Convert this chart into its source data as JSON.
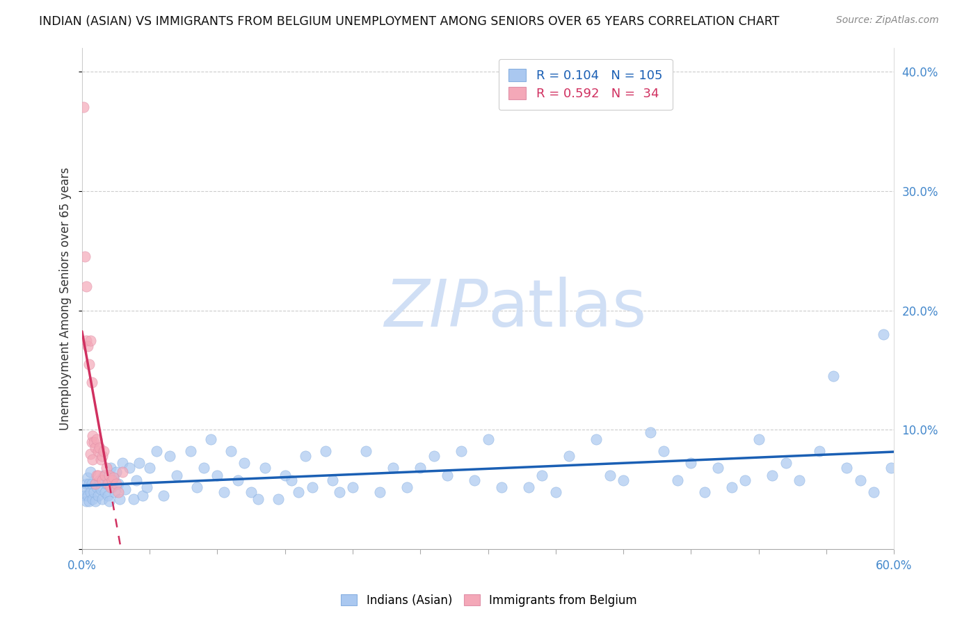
{
  "title": "INDIAN (ASIAN) VS IMMIGRANTS FROM BELGIUM UNEMPLOYMENT AMONG SENIORS OVER 65 YEARS CORRELATION CHART",
  "source": "Source: ZipAtlas.com",
  "ylabel": "Unemployment Among Seniors over 65 years",
  "xlim": [
    0.0,
    0.6
  ],
  "ylim": [
    0.0,
    0.42
  ],
  "yticks": [
    0.0,
    0.1,
    0.2,
    0.3,
    0.4
  ],
  "ytick_labels_right": [
    "",
    "10.0%",
    "20.0%",
    "30.0%",
    "40.0%"
  ],
  "blue_R": 0.104,
  "blue_N": 105,
  "pink_R": 0.592,
  "pink_N": 34,
  "blue_color": "#aac8f0",
  "pink_color": "#f4a8b8",
  "trend_line_color_blue": "#1a5fb4",
  "trend_line_color_pink": "#d03060",
  "watermark_zip": "ZIP",
  "watermark_atlas": "atlas",
  "watermark_color": "#d0dff5",
  "legend_label_blue": "Indians (Asian)",
  "legend_label_pink": "Immigrants from Belgium",
  "blue_x": [
    0.001,
    0.002,
    0.003,
    0.003,
    0.004,
    0.004,
    0.005,
    0.005,
    0.006,
    0.006,
    0.007,
    0.008,
    0.009,
    0.01,
    0.01,
    0.011,
    0.012,
    0.013,
    0.014,
    0.015,
    0.016,
    0.017,
    0.018,
    0.019,
    0.02,
    0.021,
    0.022,
    0.023,
    0.024,
    0.025,
    0.027,
    0.028,
    0.03,
    0.032,
    0.035,
    0.038,
    0.04,
    0.042,
    0.045,
    0.048,
    0.05,
    0.055,
    0.06,
    0.065,
    0.07,
    0.08,
    0.085,
    0.09,
    0.095,
    0.1,
    0.105,
    0.11,
    0.115,
    0.12,
    0.125,
    0.13,
    0.135,
    0.145,
    0.15,
    0.155,
    0.16,
    0.165,
    0.17,
    0.18,
    0.185,
    0.19,
    0.2,
    0.21,
    0.22,
    0.23,
    0.24,
    0.25,
    0.26,
    0.27,
    0.28,
    0.29,
    0.3,
    0.31,
    0.33,
    0.34,
    0.35,
    0.36,
    0.38,
    0.39,
    0.4,
    0.42,
    0.43,
    0.44,
    0.45,
    0.46,
    0.47,
    0.48,
    0.49,
    0.5,
    0.51,
    0.52,
    0.53,
    0.545,
    0.555,
    0.565,
    0.575,
    0.585,
    0.592,
    0.598
  ],
  "blue_y": [
    0.05,
    0.045,
    0.055,
    0.04,
    0.06,
    0.045,
    0.055,
    0.04,
    0.065,
    0.048,
    0.055,
    0.042,
    0.048,
    0.055,
    0.04,
    0.052,
    0.045,
    0.058,
    0.05,
    0.042,
    0.062,
    0.048,
    0.055,
    0.045,
    0.04,
    0.068,
    0.052,
    0.06,
    0.048,
    0.065,
    0.055,
    0.042,
    0.072,
    0.05,
    0.068,
    0.042,
    0.058,
    0.072,
    0.045,
    0.052,
    0.068,
    0.082,
    0.045,
    0.078,
    0.062,
    0.082,
    0.052,
    0.068,
    0.092,
    0.062,
    0.048,
    0.082,
    0.058,
    0.072,
    0.048,
    0.042,
    0.068,
    0.042,
    0.062,
    0.058,
    0.048,
    0.078,
    0.052,
    0.082,
    0.058,
    0.048,
    0.052,
    0.082,
    0.048,
    0.068,
    0.052,
    0.068,
    0.078,
    0.062,
    0.082,
    0.058,
    0.092,
    0.052,
    0.052,
    0.062,
    0.048,
    0.078,
    0.092,
    0.062,
    0.058,
    0.098,
    0.082,
    0.058,
    0.072,
    0.048,
    0.068,
    0.052,
    0.058,
    0.092,
    0.062,
    0.072,
    0.058,
    0.082,
    0.145,
    0.068,
    0.058,
    0.048,
    0.18,
    0.068
  ],
  "pink_x": [
    0.001,
    0.002,
    0.003,
    0.003,
    0.004,
    0.005,
    0.006,
    0.006,
    0.007,
    0.007,
    0.008,
    0.008,
    0.009,
    0.01,
    0.01,
    0.011,
    0.011,
    0.012,
    0.012,
    0.013,
    0.014,
    0.015,
    0.015,
    0.016,
    0.017,
    0.018,
    0.019,
    0.02,
    0.021,
    0.022,
    0.023,
    0.025,
    0.027,
    0.03
  ],
  "pink_y": [
    0.37,
    0.245,
    0.175,
    0.22,
    0.17,
    0.155,
    0.175,
    0.08,
    0.14,
    0.09,
    0.095,
    0.075,
    0.09,
    0.085,
    0.055,
    0.092,
    0.062,
    0.082,
    0.062,
    0.085,
    0.075,
    0.078,
    0.058,
    0.082,
    0.062,
    0.068,
    0.055,
    0.062,
    0.052,
    0.058,
    0.06,
    0.055,
    0.048,
    0.065
  ]
}
